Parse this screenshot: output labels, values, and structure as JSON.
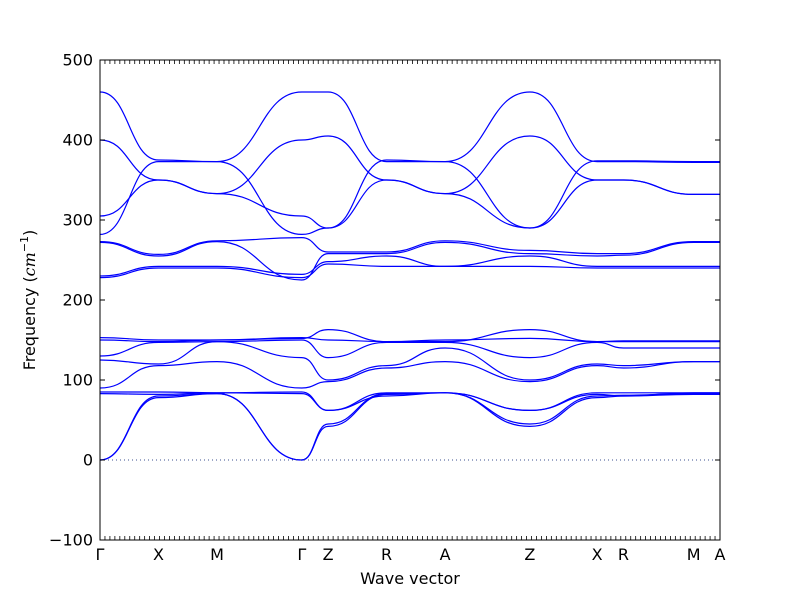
{
  "chart_data": {
    "type": "line",
    "title": "",
    "xlabel": "Wave vector",
    "ylabel_text": "Frequency (",
    "ylabel_unit_base": "cm",
    "ylabel_unit_exp": "−1",
    "ylabel_close": ")",
    "ylim": [
      -100,
      500
    ],
    "yticks": [
      -100,
      0,
      100,
      200,
      300,
      400,
      500
    ],
    "line_color": "#0000ff",
    "zero_line": {
      "y": 0,
      "style": "dotted",
      "color": "#3b4f8f"
    },
    "grid": false,
    "legend": "none",
    "xlim": [
      0,
      10.6
    ],
    "kpoints": [
      {
        "label": "Γ",
        "x": 0
      },
      {
        "label": "X",
        "x": 1.0
      },
      {
        "label": "M",
        "x": 2.0
      },
      {
        "label": "Γ",
        "x": 3.45
      },
      {
        "label": "Z",
        "x": 3.9
      },
      {
        "label": "R",
        "x": 4.9
      },
      {
        "label": "A",
        "x": 5.9
      },
      {
        "label": "Z",
        "x": 7.35
      },
      {
        "label": "X",
        "x": 8.5
      },
      {
        "label": "R",
        "x": 8.95
      },
      {
        "label": "M",
        "x": 10.15
      },
      {
        "label": "A",
        "x": 10.6
      }
    ],
    "series": [
      {
        "x": [
          0,
          1.0,
          2.0,
          3.45,
          3.9,
          4.9,
          5.9,
          7.35,
          8.5,
          8.95,
          10.15,
          10.6
        ],
        "y": [
          0,
          78,
          83,
          0,
          42,
          82,
          84,
          42,
          78,
          80,
          82,
          82
        ]
      },
      {
        "x": [
          0,
          1.0,
          2.0,
          3.45,
          3.9,
          4.9,
          5.9,
          7.35,
          8.5,
          8.95,
          10.15,
          10.6
        ],
        "y": [
          0,
          80,
          83,
          0,
          45,
          83,
          84,
          45,
          80,
          81,
          83,
          83
        ]
      },
      {
        "x": [
          0,
          1.0,
          2.0,
          3.45,
          3.9,
          4.9,
          5.9,
          7.35,
          8.5,
          8.95,
          10.15,
          10.6
        ],
        "y": [
          83,
          82,
          84,
          83,
          62,
          80,
          84,
          62,
          82,
          80,
          84,
          84
        ]
      },
      {
        "x": [
          0,
          1.0,
          2.0,
          3.45,
          3.9,
          4.9,
          5.9,
          7.35,
          8.5,
          8.95,
          10.15,
          10.6
        ],
        "y": [
          85,
          85,
          84,
          85,
          62,
          84,
          84,
          62,
          84,
          84,
          84,
          84
        ]
      },
      {
        "x": [
          0,
          1.0,
          2.0,
          3.45,
          3.9,
          4.9,
          5.9,
          7.35,
          8.5,
          8.95,
          10.15,
          10.6
        ],
        "y": [
          90,
          118,
          123,
          90,
          98,
          115,
          123,
          98,
          118,
          115,
          123,
          123
        ]
      },
      {
        "x": [
          0,
          1.0,
          2.0,
          3.45,
          3.9,
          4.9,
          5.9,
          7.35,
          8.5,
          8.95,
          10.15,
          10.6
        ],
        "y": [
          125,
          120,
          148,
          128,
          100,
          118,
          140,
          100,
          120,
          118,
          123,
          123
        ]
      },
      {
        "x": [
          0,
          1.0,
          2.0,
          3.45,
          3.9,
          4.9,
          5.9,
          7.35,
          8.5,
          8.95,
          10.15,
          10.6
        ],
        "y": [
          130,
          147,
          148,
          150,
          128,
          147,
          147,
          128,
          147,
          140,
          140,
          140
        ]
      },
      {
        "x": [
          0,
          1.0,
          2.0,
          3.45,
          3.9,
          4.9,
          5.9,
          7.35,
          8.5,
          8.95,
          10.15,
          10.6
        ],
        "y": [
          150,
          148,
          150,
          152,
          163,
          148,
          148,
          163,
          148,
          148,
          148,
          148
        ]
      },
      {
        "x": [
          0,
          1.0,
          2.0,
          3.45,
          3.9,
          4.9,
          5.9,
          7.35,
          8.5,
          8.95,
          10.15,
          10.6
        ],
        "y": [
          153,
          150,
          150,
          153,
          150,
          148,
          150,
          152,
          148,
          149,
          149,
          149
        ]
      },
      {
        "x": [
          0,
          1.0,
          2.0,
          3.45,
          3.9,
          4.9,
          5.9,
          7.35,
          8.5,
          8.95,
          10.15,
          10.6
        ],
        "y": [
          228,
          240,
          240,
          228,
          245,
          242,
          242,
          242,
          240,
          240,
          240,
          240
        ]
      },
      {
        "x": [
          0,
          1.0,
          2.0,
          3.45,
          3.9,
          4.9,
          5.9,
          7.35,
          8.5,
          8.95,
          10.15,
          10.6
        ],
        "y": [
          230,
          242,
          242,
          232,
          248,
          255,
          242,
          255,
          242,
          242,
          242,
          242
        ]
      },
      {
        "x": [
          0,
          1.0,
          2.0,
          3.45,
          3.9,
          4.9,
          5.9,
          7.35,
          8.5,
          8.95,
          10.15,
          10.6
        ],
        "y": [
          272,
          255,
          273,
          225,
          258,
          258,
          272,
          258,
          255,
          256,
          272,
          272
        ]
      },
      {
        "x": [
          0,
          1.0,
          2.0,
          3.45,
          3.9,
          4.9,
          5.9,
          7.35,
          8.5,
          8.95,
          10.15,
          10.6
        ],
        "y": [
          273,
          257,
          274,
          278,
          260,
          260,
          274,
          262,
          258,
          258,
          273,
          273
        ]
      },
      {
        "x": [
          0,
          1.0,
          2.0,
          3.45,
          3.9,
          4.9,
          5.9,
          7.35,
          8.5,
          8.95,
          10.15,
          10.6
        ],
        "y": [
          305,
          350,
          333,
          305,
          290,
          350,
          333,
          290,
          350,
          350,
          332,
          332
        ]
      },
      {
        "x": [
          0,
          1.0,
          2.0,
          3.45,
          3.9,
          4.9,
          5.9,
          7.35,
          8.5,
          8.95,
          10.15,
          10.6
        ],
        "y": [
          400,
          350,
          333,
          400,
          405,
          350,
          333,
          405,
          350,
          350,
          332,
          332
        ]
      },
      {
        "x": [
          0,
          1.0,
          2.0,
          3.45,
          3.9,
          4.9,
          5.9,
          7.35,
          8.5,
          8.95,
          10.15,
          10.6
        ],
        "y": [
          282,
          373,
          373,
          460,
          460,
          373,
          373,
          460,
          373,
          373,
          372,
          372
        ]
      },
      {
        "x": [
          0,
          1.0,
          2.0,
          3.45,
          3.9,
          4.9,
          5.9,
          7.35,
          8.5,
          8.95,
          10.15,
          10.6
        ],
        "y": [
          460,
          375,
          373,
          282,
          290,
          375,
          373,
          290,
          374,
          374,
          373,
          373
        ]
      }
    ]
  }
}
